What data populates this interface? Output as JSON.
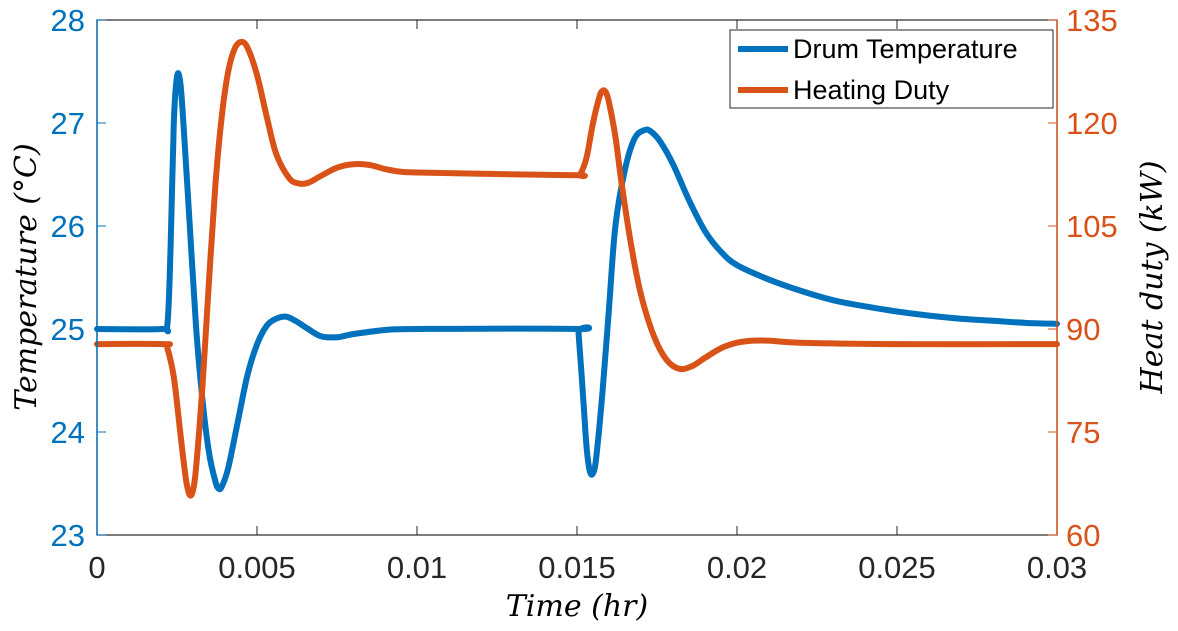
{
  "chart_data": {
    "type": "line",
    "title": "",
    "xlabel": "Time (hr)",
    "ylabel_left": "Temperature (°C)",
    "ylabel_right": "Heat duty (kW)",
    "xlim": [
      0,
      0.03
    ],
    "ylim_left": [
      23,
      28
    ],
    "ylim_right": [
      60,
      135
    ],
    "x_ticks": [
      "0",
      "0.005",
      "0.01",
      "0.015",
      "0.02",
      "0.025",
      "0.03"
    ],
    "y_left_ticks": [
      "23",
      "24",
      "25",
      "26",
      "27",
      "28"
    ],
    "y_right_ticks": [
      "60",
      "75",
      "90",
      "105",
      "120",
      "135"
    ],
    "legend_position": "top-right",
    "grid": false,
    "series": [
      {
        "name": "Drum Temperature",
        "axis": "left",
        "color": "#0072BD",
        "points": [
          [
            0,
            25.0
          ],
          [
            0.002,
            25.0
          ],
          [
            0.0022,
            25.05
          ],
          [
            0.0023,
            25.8
          ],
          [
            0.0024,
            27.0
          ],
          [
            0.0025,
            27.45
          ],
          [
            0.0026,
            27.4
          ],
          [
            0.0027,
            27.0
          ],
          [
            0.0029,
            26.0
          ],
          [
            0.0031,
            25.0
          ],
          [
            0.0033,
            24.3
          ],
          [
            0.0035,
            23.8
          ],
          [
            0.0037,
            23.52
          ],
          [
            0.0038,
            23.45
          ],
          [
            0.0039,
            23.47
          ],
          [
            0.0041,
            23.65
          ],
          [
            0.0044,
            24.1
          ],
          [
            0.0047,
            24.55
          ],
          [
            0.005,
            24.85
          ],
          [
            0.0053,
            25.03
          ],
          [
            0.0056,
            25.1
          ],
          [
            0.0059,
            25.12
          ],
          [
            0.0062,
            25.08
          ],
          [
            0.0066,
            25.0
          ],
          [
            0.007,
            24.93
          ],
          [
            0.0075,
            24.92
          ],
          [
            0.008,
            24.95
          ],
          [
            0.009,
            24.99
          ],
          [
            0.01,
            25.0
          ],
          [
            0.015,
            25.0
          ],
          [
            0.01505,
            24.95
          ],
          [
            0.0152,
            24.3
          ],
          [
            0.0153,
            23.85
          ],
          [
            0.0154,
            23.62
          ],
          [
            0.0155,
            23.6
          ],
          [
            0.0156,
            23.75
          ],
          [
            0.0158,
            24.4
          ],
          [
            0.016,
            25.2
          ],
          [
            0.0162,
            26.0
          ],
          [
            0.0165,
            26.55
          ],
          [
            0.0168,
            26.85
          ],
          [
            0.0171,
            26.93
          ],
          [
            0.0173,
            26.92
          ],
          [
            0.0176,
            26.82
          ],
          [
            0.018,
            26.6
          ],
          [
            0.0185,
            26.25
          ],
          [
            0.019,
            25.95
          ],
          [
            0.0195,
            25.75
          ],
          [
            0.02,
            25.62
          ],
          [
            0.021,
            25.48
          ],
          [
            0.022,
            25.37
          ],
          [
            0.023,
            25.28
          ],
          [
            0.024,
            25.22
          ],
          [
            0.025,
            25.17
          ],
          [
            0.026,
            25.13
          ],
          [
            0.027,
            25.1
          ],
          [
            0.028,
            25.08
          ],
          [
            0.029,
            25.06
          ],
          [
            0.03,
            25.05
          ]
        ]
      },
      {
        "name": "Heating Duty",
        "axis": "right",
        "color": "#D95319",
        "points": [
          [
            0,
            87.8
          ],
          [
            0.0021,
            87.8
          ],
          [
            0.0022,
            87.2
          ],
          [
            0.0024,
            83.0
          ],
          [
            0.0026,
            75.0
          ],
          [
            0.0027,
            71.0
          ],
          [
            0.0028,
            67.5
          ],
          [
            0.0029,
            65.8
          ],
          [
            0.003,
            66.5
          ],
          [
            0.0031,
            70.0
          ],
          [
            0.0033,
            82.0
          ],
          [
            0.0035,
            97.0
          ],
          [
            0.0037,
            111.0
          ],
          [
            0.0039,
            121.0
          ],
          [
            0.0041,
            127.5
          ],
          [
            0.0043,
            130.8
          ],
          [
            0.0045,
            131.8
          ],
          [
            0.0047,
            131.0
          ],
          [
            0.005,
            127.0
          ],
          [
            0.0053,
            121.0
          ],
          [
            0.0056,
            115.5
          ],
          [
            0.006,
            112.0
          ],
          [
            0.0063,
            111.2
          ],
          [
            0.0066,
            111.3
          ],
          [
            0.007,
            112.3
          ],
          [
            0.0075,
            113.5
          ],
          [
            0.008,
            114.0
          ],
          [
            0.0085,
            113.9
          ],
          [
            0.009,
            113.3
          ],
          [
            0.0095,
            112.9
          ],
          [
            0.01,
            112.8
          ],
          [
            0.012,
            112.6
          ],
          [
            0.015,
            112.4
          ],
          [
            0.0151,
            112.5
          ],
          [
            0.0153,
            115.0
          ],
          [
            0.0155,
            120.0
          ],
          [
            0.0157,
            123.8
          ],
          [
            0.0158,
            124.7
          ],
          [
            0.0159,
            124.5
          ],
          [
            0.016,
            123.0
          ],
          [
            0.0162,
            118.0
          ],
          [
            0.0164,
            111.0
          ],
          [
            0.0167,
            102.0
          ],
          [
            0.017,
            95.0
          ],
          [
            0.0174,
            89.0
          ],
          [
            0.0178,
            85.5
          ],
          [
            0.0182,
            84.2
          ],
          [
            0.0186,
            84.6
          ],
          [
            0.019,
            85.8
          ],
          [
            0.0195,
            87.2
          ],
          [
            0.02,
            88.0
          ],
          [
            0.0205,
            88.3
          ],
          [
            0.021,
            88.3
          ],
          [
            0.022,
            88.0
          ],
          [
            0.025,
            87.8
          ],
          [
            0.03,
            87.8
          ]
        ]
      }
    ]
  }
}
